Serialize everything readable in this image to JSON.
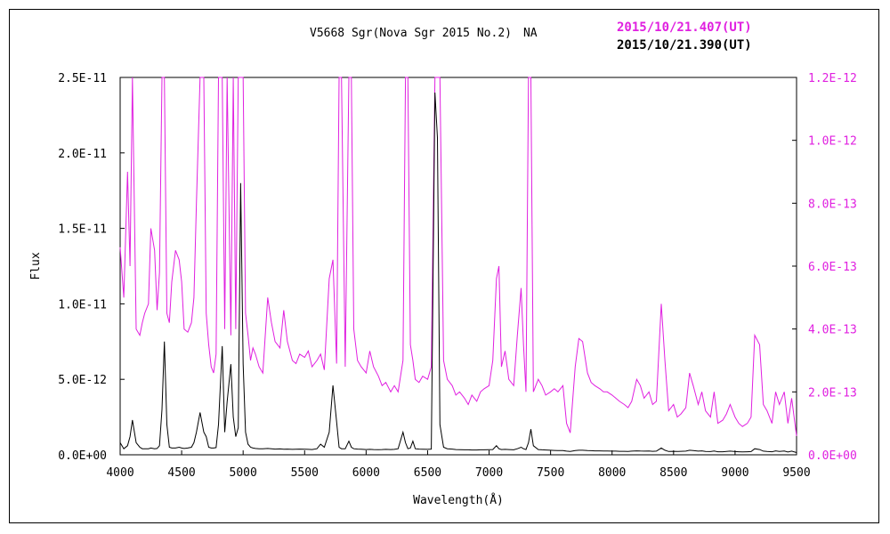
{
  "chart_data": {
    "type": "line",
    "title": "V5668 Sgr(Nova Sgr 2015 No.2)　NA",
    "xlabel": "Wavelength(Å)",
    "ylabel": "Flux",
    "xlim": [
      4000,
      9500
    ],
    "x_ticks": [
      "4000",
      "4500",
      "5000",
      "5500",
      "6000",
      "6500",
      "7000",
      "7500",
      "8000",
      "8500",
      "9000",
      "9500"
    ],
    "y_left": {
      "range": [
        0,
        2.5e-11
      ],
      "ticks": [
        "0.0E+00",
        "5.0E-12",
        "1.0E-11",
        "1.5E-11",
        "2.0E-11",
        "2.5E-11"
      ]
    },
    "y_right": {
      "range": [
        0,
        1.2e-12
      ],
      "ticks": [
        "0.0E+00",
        "2.0E-13",
        "4.0E-13",
        "6.0E-13",
        "8.0E-13",
        "1.0E-12",
        "1.2E-12"
      ]
    },
    "grid": false,
    "legend_position": "top-right",
    "series": [
      {
        "name": "2015/10/21.407(UT)",
        "axis": "right",
        "color": "#e020e0",
        "x": [
          4000,
          4030,
          4060,
          4080,
          4100,
          4130,
          4160,
          4180,
          4200,
          4230,
          4250,
          4280,
          4300,
          4320,
          4340,
          4360,
          4380,
          4400,
          4420,
          4450,
          4480,
          4500,
          4520,
          4550,
          4580,
          4600,
          4620,
          4650,
          4680,
          4700,
          4720,
          4740,
          4760,
          4780,
          4800,
          4830,
          4850,
          4870,
          4900,
          4920,
          4940,
          4960,
          4980,
          5000,
          5020,
          5040,
          5060,
          5080,
          5100,
          5130,
          5160,
          5200,
          5230,
          5260,
          5300,
          5330,
          5360,
          5400,
          5430,
          5460,
          5500,
          5530,
          5560,
          5600,
          5630,
          5660,
          5700,
          5730,
          5760,
          5780,
          5800,
          5830,
          5860,
          5880,
          5900,
          5930,
          5960,
          6000,
          6030,
          6060,
          6100,
          6130,
          6160,
          6200,
          6230,
          6260,
          6300,
          6320,
          6340,
          6360,
          6380,
          6400,
          6430,
          6460,
          6500,
          6530,
          6560,
          6580,
          6600,
          6630,
          6660,
          6700,
          6730,
          6760,
          6800,
          6830,
          6860,
          6900,
          6930,
          6960,
          7000,
          7030,
          7060,
          7080,
          7100,
          7130,
          7160,
          7200,
          7230,
          7260,
          7280,
          7300,
          7320,
          7340,
          7360,
          7400,
          7430,
          7460,
          7500,
          7530,
          7560,
          7600,
          7630,
          7660,
          7700,
          7730,
          7760,
          7800,
          7830,
          7860,
          7900,
          7930,
          7960,
          8000,
          8030,
          8060,
          8100,
          8130,
          8160,
          8200,
          8230,
          8260,
          8300,
          8330,
          8360,
          8400,
          8430,
          8460,
          8500,
          8530,
          8560,
          8600,
          8630,
          8660,
          8700,
          8730,
          8760,
          8800,
          8830,
          8860,
          8900,
          8930,
          8960,
          9000,
          9030,
          9060,
          9100,
          9130,
          9160,
          9200,
          9230,
          9260,
          9300,
          9330,
          9360,
          9400,
          9430,
          9460,
          9500
        ],
        "y": [
          6.6e-13,
          5e-13,
          9e-13,
          6e-13,
          1.2e-12,
          4e-13,
          3.8e-13,
          4.2e-13,
          4.5e-13,
          4.8e-13,
          7.2e-13,
          6.5e-13,
          4.6e-13,
          5.8e-13,
          1.2e-12,
          1.2e-12,
          4.5e-13,
          4.2e-13,
          5.5e-13,
          6.5e-13,
          6.2e-13,
          5.5e-13,
          4e-13,
          3.9e-13,
          4.2e-13,
          5e-13,
          8e-13,
          1.2e-12,
          1.2e-12,
          4.5e-13,
          3.5e-13,
          2.8e-13,
          2.6e-13,
          3.2e-13,
          1.2e-12,
          1.2e-12,
          4e-13,
          1.2e-12,
          3.8e-13,
          1.2e-12,
          4e-13,
          1.2e-12,
          1.2e-12,
          1.2e-12,
          4.5e-13,
          3.8e-13,
          3e-13,
          3.4e-13,
          3.2e-13,
          2.8e-13,
          2.6e-13,
          5e-13,
          4.2e-13,
          3.6e-13,
          3.4e-13,
          4.6e-13,
          3.6e-13,
          3e-13,
          2.9e-13,
          3.2e-13,
          3.1e-13,
          3.3e-13,
          2.8e-13,
          3e-13,
          3.2e-13,
          2.7e-13,
          5.6e-13,
          6.2e-13,
          2.9e-13,
          1.2e-12,
          1.2e-12,
          2.8e-13,
          1.2e-12,
          1.2e-12,
          4e-13,
          3e-13,
          2.8e-13,
          2.6e-13,
          3.3e-13,
          2.8e-13,
          2.5e-13,
          2.2e-13,
          2.3e-13,
          2e-13,
          2.2e-13,
          2e-13,
          3e-13,
          1.2e-12,
          1.2e-12,
          3.5e-13,
          3e-13,
          2.4e-13,
          2.3e-13,
          2.5e-13,
          2.4e-13,
          2.8e-13,
          1.2e-12,
          1.2e-12,
          1.2e-12,
          3e-13,
          2.4e-13,
          2.2e-13,
          1.9e-13,
          2e-13,
          1.8e-13,
          1.6e-13,
          1.9e-13,
          1.7e-13,
          2e-13,
          2.1e-13,
          2.2e-13,
          3e-13,
          5.6e-13,
          6e-13,
          2.8e-13,
          3.3e-13,
          2.4e-13,
          2.2e-13,
          3.8e-13,
          5.3e-13,
          3.5e-13,
          2e-13,
          1.2e-12,
          1.2e-12,
          2e-13,
          2.4e-13,
          2.2e-13,
          1.9e-13,
          2e-13,
          2.1e-13,
          2e-13,
          2.2e-13,
          1e-13,
          7e-14,
          2.8e-13,
          3.7e-13,
          3.6e-13,
          2.6e-13,
          2.3e-13,
          2.2e-13,
          2.1e-13,
          2e-13,
          2e-13,
          1.9e-13,
          1.8e-13,
          1.7e-13,
          1.6e-13,
          1.5e-13,
          1.7e-13,
          2.4e-13,
          2.2e-13,
          1.8e-13,
          2e-13,
          1.6e-13,
          1.7e-13,
          4.8e-13,
          3e-13,
          1.4e-13,
          1.6e-13,
          1.2e-13,
          1.3e-13,
          1.5e-13,
          2.6e-13,
          2.2e-13,
          1.6e-13,
          2e-13,
          1.4e-13,
          1.2e-13,
          2e-13,
          1e-13,
          1.1e-13,
          1.3e-13,
          1.6e-13,
          1.2e-13,
          1e-13,
          9e-14,
          1e-13,
          1.2e-13,
          3.8e-13,
          3.5e-13,
          1.6e-13,
          1.4e-13,
          1e-13,
          2e-13,
          1.6e-13,
          2e-13,
          1e-13,
          1.8e-13,
          6e-14
        ]
      },
      {
        "name": "2015/10/21.390(UT)",
        "axis": "left",
        "color": "#000000",
        "x": [
          4000,
          4030,
          4060,
          4080,
          4100,
          4130,
          4160,
          4180,
          4200,
          4230,
          4250,
          4280,
          4300,
          4320,
          4340,
          4360,
          4380,
          4400,
          4420,
          4450,
          4480,
          4500,
          4520,
          4550,
          4580,
          4600,
          4620,
          4650,
          4680,
          4700,
          4720,
          4740,
          4760,
          4780,
          4800,
          4830,
          4850,
          4870,
          4900,
          4920,
          4940,
          4960,
          4980,
          5000,
          5020,
          5040,
          5060,
          5080,
          5100,
          5130,
          5160,
          5200,
          5230,
          5260,
          5300,
          5330,
          5360,
          5400,
          5430,
          5460,
          5500,
          5530,
          5560,
          5600,
          5630,
          5660,
          5700,
          5730,
          5760,
          5780,
          5800,
          5830,
          5860,
          5880,
          5900,
          5930,
          5960,
          6000,
          6030,
          6060,
          6100,
          6130,
          6160,
          6200,
          6230,
          6260,
          6300,
          6320,
          6340,
          6360,
          6380,
          6400,
          6430,
          6460,
          6500,
          6530,
          6560,
          6580,
          6600,
          6630,
          6660,
          6700,
          6730,
          6760,
          6800,
          6830,
          6860,
          6900,
          6930,
          6960,
          7000,
          7030,
          7060,
          7080,
          7100,
          7130,
          7160,
          7200,
          7230,
          7260,
          7280,
          7300,
          7320,
          7340,
          7360,
          7400,
          7430,
          7460,
          7500,
          7530,
          7560,
          7600,
          7630,
          7660,
          7700,
          7730,
          7760,
          7800,
          7830,
          7860,
          7900,
          7930,
          7960,
          8000,
          8030,
          8060,
          8100,
          8130,
          8160,
          8200,
          8230,
          8260,
          8300,
          8330,
          8360,
          8400,
          8430,
          8460,
          8500,
          8530,
          8560,
          8600,
          8630,
          8660,
          8700,
          8730,
          8760,
          8800,
          8830,
          8860,
          8900,
          8930,
          8960,
          9000,
          9030,
          9060,
          9100,
          9130,
          9160,
          9200,
          9230,
          9260,
          9300,
          9330,
          9360,
          9400,
          9430,
          9460,
          9500
        ],
        "y": [
          8e-13,
          4e-13,
          6e-13,
          1.2e-12,
          2.3e-12,
          8e-13,
          5e-13,
          4e-13,
          4e-13,
          4e-13,
          4.5e-13,
          4e-13,
          4.2e-13,
          6e-13,
          3e-12,
          7.5e-12,
          2e-12,
          5e-13,
          4.5e-13,
          4.5e-13,
          5e-13,
          4.5e-13,
          4.2e-13,
          4.5e-13,
          5e-13,
          8e-13,
          1.5e-12,
          2.8e-12,
          1.5e-12,
          1.2e-12,
          5e-13,
          4.5e-13,
          4.5e-13,
          4.8e-13,
          2e-12,
          7.2e-12,
          1.5e-12,
          3.5e-12,
          6e-12,
          2.5e-12,
          1.2e-12,
          1.8e-12,
          1.8e-11,
          6e-12,
          1.5e-12,
          7e-13,
          5e-13,
          4.5e-13,
          4.2e-13,
          4e-13,
          4e-13,
          4.2e-13,
          4e-13,
          3.8e-13,
          3.9e-13,
          3.7e-13,
          3.8e-13,
          3.6e-13,
          3.7e-13,
          3.8e-13,
          3.7e-13,
          3.6e-13,
          3.5e-13,
          4e-13,
          7e-13,
          5e-13,
          1.5e-12,
          4.6e-12,
          2.2e-12,
          5e-13,
          4e-13,
          4e-13,
          9e-13,
          5e-13,
          4e-13,
          3.8e-13,
          3.7e-13,
          3.5e-13,
          3.6e-13,
          3.5e-13,
          3.4e-13,
          3.5e-13,
          3.6e-13,
          3.5e-13,
          3.6e-13,
          4e-13,
          1.5e-12,
          8e-13,
          4e-13,
          4.5e-13,
          9e-13,
          4e-13,
          3.8e-13,
          3.7e-13,
          3.6e-13,
          3.8e-13,
          2.4e-11,
          2.1e-11,
          2e-12,
          5e-13,
          4e-13,
          3.8e-13,
          3.5e-13,
          3.4e-13,
          3.3e-13,
          3.3e-13,
          3.2e-13,
          3.2e-13,
          3.3e-13,
          3.3e-13,
          3.4e-13,
          3.5e-13,
          6e-13,
          4e-13,
          3.5e-13,
          3.6e-13,
          3.5e-13,
          3.3e-13,
          4e-13,
          5e-13,
          4e-13,
          3.5e-13,
          8e-13,
          1.7e-12,
          6e-13,
          3.5e-13,
          3.3e-13,
          3.2e-13,
          3e-13,
          2.9e-13,
          2.8e-13,
          2.8e-13,
          2.4e-13,
          2.2e-13,
          2.8e-13,
          3e-13,
          3e-13,
          2.8e-13,
          2.7e-13,
          2.6e-13,
          2.6e-13,
          2.5e-13,
          2.5e-13,
          2.4e-13,
          2.4e-13,
          2.3e-13,
          2.3e-13,
          2.2e-13,
          2.4e-13,
          2.6e-13,
          2.5e-13,
          2.4e-13,
          2.5e-13,
          2.3e-13,
          2.4e-13,
          4.5e-13,
          3e-13,
          2.2e-13,
          2.3e-13,
          2.2e-13,
          2.3e-13,
          2.4e-13,
          3e-13,
          2.8e-13,
          2.4e-13,
          2.6e-13,
          2.2e-13,
          2.1e-13,
          2.5e-13,
          2e-13,
          2e-13,
          2.2e-13,
          2.4e-13,
          2.1e-13,
          2e-13,
          1.9e-13,
          2e-13,
          2.1e-13,
          4e-13,
          3.5e-13,
          2.4e-13,
          2.2e-13,
          2e-13,
          2.6e-13,
          2.2e-13,
          2.5e-13,
          1.8e-13,
          2.4e-13,
          1.5e-13
        ]
      }
    ]
  }
}
